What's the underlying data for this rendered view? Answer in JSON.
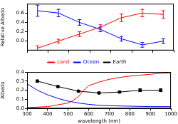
{
  "chart_data": [
    {
      "type": "line",
      "y_label": "Relative Albedo",
      "xlim": [
        300,
        1000
      ],
      "xticks": [
        300,
        400,
        500,
        600,
        700,
        800,
        900,
        1000
      ],
      "ylim": [
        -0.2,
        0.8
      ],
      "yticks": [
        {
          "value": 0,
          "label": "0.0"
        },
        0.2,
        0.4,
        0.6
      ],
      "tick_labels": "y",
      "grid": false,
      "series": [
        {
          "color": "#0000ff",
          "marker": "none",
          "x": [
            350,
            450,
            550,
            650,
            750,
            850,
            950
          ],
          "values": [
            0.65,
            0.6,
            0.4,
            0.25,
            0.05,
            -0.08,
            0.0
          ],
          "errors": [
            0.12,
            0.08,
            0.06,
            0.05,
            0.05,
            0.05,
            0.05
          ]
        },
        {
          "color": "#ff0000",
          "marker": "none",
          "x": [
            350,
            450,
            550,
            650,
            750,
            850,
            950
          ],
          "values": [
            -0.15,
            0.0,
            0.15,
            0.3,
            0.5,
            0.6,
            0.57
          ],
          "errors": [
            0.05,
            0.04,
            0.05,
            0.05,
            0.08,
            0.08,
            0.08
          ]
        }
      ]
    },
    {
      "type": "line",
      "y_label": "Albedo",
      "x_label": "wavelength (nm)",
      "xlim": [
        300,
        1000
      ],
      "xticks": [
        300,
        400,
        500,
        600,
        700,
        800,
        900,
        1000
      ],
      "ylim": [
        0,
        0.4
      ],
      "yticks": [
        {
          "value": 0,
          "label": "0.0"
        },
        0.1,
        0.2,
        0.3,
        0.4
      ],
      "grid": false,
      "legend": "top",
      "series": [
        {
          "name": "Land",
          "color": "#ff0000",
          "marker": "none",
          "x": [
            300,
            350,
            400,
            450,
            500,
            525,
            550,
            575,
            600,
            650,
            700,
            750,
            800,
            850,
            900,
            950,
            1000
          ],
          "values": [
            0.01,
            0.015,
            0.02,
            0.04,
            0.06,
            0.09,
            0.13,
            0.2,
            0.25,
            0.29,
            0.32,
            0.34,
            0.355,
            0.365,
            0.375,
            0.385,
            0.39
          ]
        },
        {
          "name": "Ocean",
          "color": "#0000ff",
          "marker": "none",
          "x": [
            300,
            350,
            400,
            450,
            500,
            550,
            600,
            650,
            700,
            800,
            900,
            1000
          ],
          "values": [
            0.27,
            0.2,
            0.15,
            0.11,
            0.08,
            0.06,
            0.045,
            0.035,
            0.03,
            0.025,
            0.02,
            0.02
          ]
        },
        {
          "name": "Earth",
          "color": "#000000",
          "marker": "circle",
          "x": [
            350,
            450,
            550,
            650,
            750,
            850,
            950
          ],
          "values": [
            0.3,
            0.24,
            0.19,
            0.17,
            0.18,
            0.2,
            0.2
          ],
          "errors": [
            0.012,
            0.01,
            0.01,
            0.01,
            0.01,
            0.015,
            0.015
          ]
        }
      ]
    }
  ]
}
